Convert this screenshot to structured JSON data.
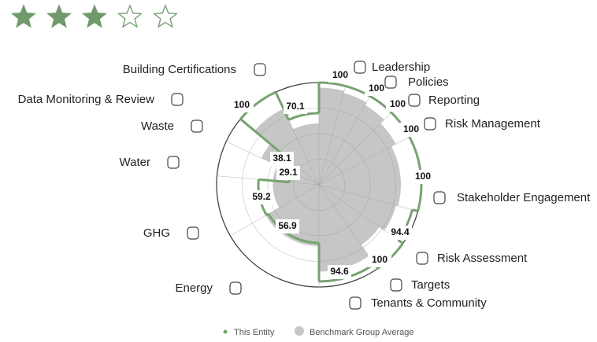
{
  "rating": {
    "value": 3,
    "max": 5,
    "color": "#6f9a6b"
  },
  "chart_data": {
    "type": "polar-area",
    "categories": [
      "Leadership",
      "Policies",
      "Reporting",
      "Risk Management",
      "Stakeholder Engagement",
      "Risk Assessment",
      "Targets",
      "Tenants & Community",
      "Energy",
      "GHG",
      "Water",
      "Waste",
      "Data Monitoring & Review",
      "Building Certifications"
    ],
    "rlim": [
      0,
      100
    ],
    "rticks": [
      25,
      50,
      75,
      100
    ],
    "series": [
      {
        "name": "This Entity",
        "color": "#76a36f",
        "values": [
          100,
          100,
          100,
          100,
          100,
          94.4,
          100,
          94.6,
          56.9,
          59.2,
          29.1,
          38.1,
          100,
          70.1
        ]
      },
      {
        "name": "Benchmark Group Average",
        "color": "#c6c6c6",
        "values": [
          95,
          93,
          90,
          85,
          80,
          78,
          72,
          85,
          60,
          45,
          45,
          62,
          82,
          60
        ]
      }
    ]
  }
}
